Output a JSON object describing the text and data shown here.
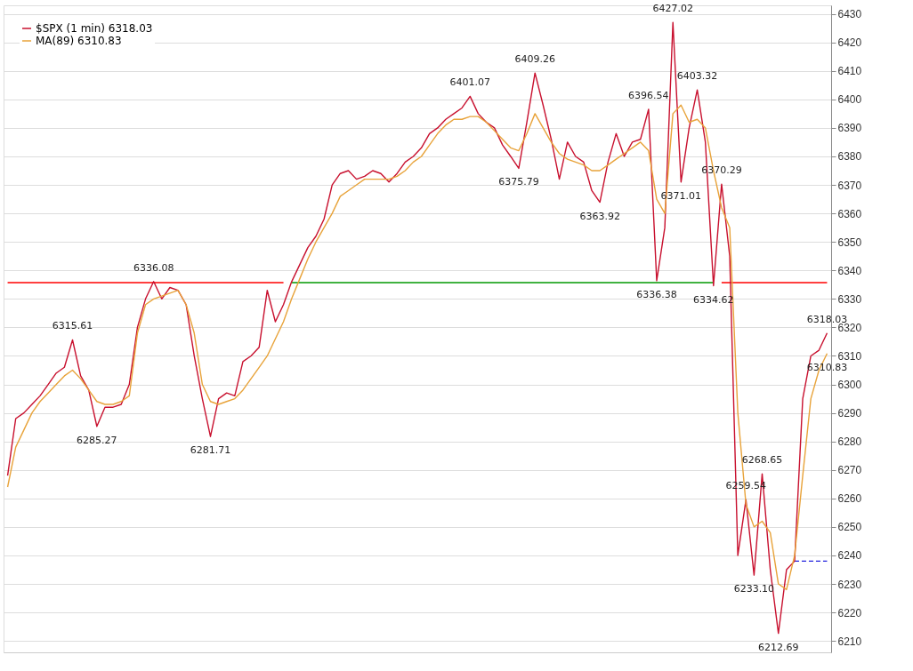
{
  "chart_data": {
    "type": "line",
    "categories": [
      null,
      null,
      null,
      null,
      null,
      null,
      null,
      null,
      null,
      null,
      null,
      null,
      null,
      null,
      null,
      null,
      null,
      null,
      null,
      null,
      null,
      null,
      null,
      null,
      null,
      null,
      null,
      null,
      null,
      null,
      null,
      null,
      null,
      null,
      null,
      null,
      null,
      null,
      null,
      null,
      null,
      null,
      null,
      null,
      null,
      null,
      null,
      null,
      null,
      null,
      null,
      null,
      null,
      null,
      null,
      null,
      null,
      null,
      null,
      null,
      null,
      null,
      null,
      null,
      null,
      null,
      null,
      null,
      null,
      null,
      null,
      null,
      null,
      null,
      null,
      null,
      null,
      null,
      null,
      null,
      null,
      null,
      null,
      null,
      null,
      null,
      null,
      null,
      null,
      null,
      null,
      null,
      null,
      null,
      null,
      null,
      null,
      null,
      null,
      null,
      null,
      null
    ],
    "ylim": [
      6206,
      6433
    ],
    "yticks": [
      6210,
      6220,
      6230,
      6240,
      6250,
      6260,
      6270,
      6280,
      6290,
      6300,
      6310,
      6320,
      6330,
      6340,
      6350,
      6360,
      6370,
      6380,
      6390,
      6400,
      6410,
      6420,
      6430
    ],
    "tick_labels": "y",
    "grid": "y",
    "legend": "top left",
    "series": [
      {
        "color": "#ff0000",
        "values": [
          6335.7,
          6335.7,
          6335.7,
          6335.7,
          6335.7,
          6335.7,
          6335.7,
          6335.7,
          6335.7,
          6335.7,
          6335.7,
          6335.7,
          6335.7,
          6335.7,
          6335.7,
          6335.7,
          6335.7,
          6335.7,
          6335.7,
          6335.7,
          6335.7,
          6335.7,
          6335.7,
          6335.7,
          6335.7,
          6335.7,
          6335.7,
          6335.7,
          6335.7,
          6335.7,
          6335.7,
          6335.7,
          6335.7,
          6335.7,
          6335.7,
          null,
          null,
          null,
          null,
          null,
          null,
          null,
          null,
          null,
          null,
          null,
          null,
          null,
          null,
          null,
          null,
          null,
          null,
          null,
          null,
          null,
          null,
          null,
          null,
          null,
          null,
          null,
          null,
          null,
          null,
          null,
          null,
          null,
          null,
          null,
          null,
          null,
          null,
          null,
          null,
          null,
          null,
          null,
          null,
          null,
          null,
          null,
          null,
          null,
          null,
          null,
          null,
          null,
          6335.7,
          6335.7,
          6335.7,
          6335.7,
          6335.7,
          6335.7,
          6335.7,
          6335.7,
          6335.7,
          6335.7,
          6335.7,
          6335.7,
          6335.7,
          6335.7
        ]
      },
      {
        "color": "#009900",
        "values": [
          null,
          null,
          null,
          null,
          null,
          null,
          null,
          null,
          null,
          null,
          null,
          null,
          null,
          null,
          null,
          null,
          null,
          null,
          null,
          null,
          null,
          null,
          null,
          null,
          null,
          null,
          null,
          null,
          null,
          null,
          null,
          null,
          null,
          null,
          null,
          6335.7,
          6335.7,
          6335.7,
          6335.7,
          6335.7,
          6335.7,
          6335.7,
          6335.7,
          6335.7,
          6335.7,
          6335.7,
          6335.7,
          6335.7,
          6335.7,
          6335.7,
          6335.7,
          6335.7,
          6335.7,
          6335.7,
          6335.7,
          6335.7,
          6335.7,
          6335.7,
          6335.7,
          6335.7,
          6335.7,
          6335.7,
          6335.7,
          6335.7,
          6335.7,
          6335.7,
          6335.7,
          6335.7,
          6335.7,
          6335.7,
          6335.7,
          6335.7,
          6335.7,
          6335.7,
          6335.7,
          6335.7,
          6335.7,
          6335.7,
          6335.7,
          6335.7,
          6335.7,
          6335.7,
          6335.7,
          6335.7,
          6335.7,
          6335.7,
          6335.7,
          6335.7,
          null,
          null,
          null,
          null,
          null,
          null,
          null,
          null,
          null,
          null,
          null,
          null,
          null,
          null
        ]
      },
      {
        "color": "#2222dd",
        "line_style": "dashed",
        "values": [
          null,
          null,
          null,
          null,
          null,
          null,
          null,
          null,
          null,
          null,
          null,
          null,
          null,
          null,
          null,
          null,
          null,
          null,
          null,
          null,
          null,
          null,
          null,
          null,
          null,
          null,
          null,
          null,
          null,
          null,
          null,
          null,
          null,
          null,
          null,
          null,
          null,
          null,
          null,
          null,
          null,
          null,
          null,
          null,
          null,
          null,
          null,
          null,
          null,
          null,
          null,
          null,
          null,
          null,
          null,
          null,
          null,
          null,
          null,
          null,
          null,
          null,
          null,
          null,
          null,
          null,
          null,
          null,
          null,
          null,
          null,
          null,
          null,
          null,
          null,
          null,
          null,
          null,
          null,
          null,
          null,
          null,
          null,
          null,
          null,
          null,
          null,
          null,
          null,
          null,
          null,
          null,
          null,
          null,
          null,
          null,
          null,
          6238,
          6238,
          6238,
          6238,
          6238
        ]
      },
      {
        "name": "$SPX (1 min) 6318.03",
        "color": "#c8102e",
        "values": [
          6268,
          6288,
          6290,
          6293,
          6296,
          6300,
          6304,
          6306,
          6315.61,
          6303,
          6298,
          6285.27,
          6292,
          6292,
          6293,
          6300,
          6320,
          6330,
          6336.08,
          6330,
          6334,
          6333,
          6328,
          6310,
          6295,
          6281.71,
          6295,
          6297,
          6296,
          6308,
          6310,
          6313,
          6333,
          6322,
          6328,
          6336,
          6342,
          6348,
          6352,
          6358,
          6370,
          6374,
          6375,
          6372,
          6373,
          6375,
          6374,
          6371,
          6374,
          6378,
          6380,
          6383,
          6388,
          6390,
          6393,
          6395,
          6397,
          6401.07,
          6395,
          6392,
          6390,
          6384,
          6380,
          6375.79,
          6392,
          6409.26,
          6398,
          6386,
          6372,
          6385,
          6380,
          6378,
          6368,
          6363.92,
          6378,
          6388,
          6380,
          6385,
          6386,
          6396.54,
          6336.38,
          6355,
          6427.02,
          6371.01,
          6390,
          6403.32,
          6385,
          6334.62,
          6370.29,
          6345,
          6240,
          6259.54,
          6233.1,
          6268.65,
          6235,
          6212.69,
          6235,
          6238,
          6295,
          6310,
          6312,
          6318.03
        ],
        "value_labels": [
          null,
          null,
          null,
          null,
          null,
          null,
          null,
          null,
          "6315.61",
          null,
          null,
          "6285.27",
          null,
          null,
          null,
          null,
          null,
          null,
          "6336.08",
          null,
          null,
          null,
          null,
          null,
          null,
          "6281.71",
          null,
          null,
          null,
          null,
          null,
          null,
          null,
          null,
          null,
          null,
          null,
          null,
          null,
          null,
          null,
          null,
          null,
          null,
          null,
          null,
          null,
          null,
          null,
          null,
          null,
          null,
          null,
          null,
          null,
          null,
          null,
          "6401.07",
          null,
          null,
          null,
          null,
          null,
          "6375.79",
          null,
          "6409.26",
          null,
          null,
          null,
          null,
          null,
          null,
          null,
          "6363.92",
          null,
          null,
          null,
          null,
          null,
          "6396.54",
          "6336.38",
          null,
          "6427.02",
          "6371.01",
          null,
          "6403.32",
          null,
          "6334.62",
          "6370.29",
          null,
          null,
          "6259.54",
          "6233.10",
          "6268.65",
          null,
          "6212.69",
          null,
          null,
          null,
          null,
          null,
          "6318.03"
        ]
      },
      {
        "name": "MA(89) 6310.83",
        "color": "#e8a33a",
        "values": [
          6264,
          6278,
          6284,
          6290,
          6294,
          6297,
          6300,
          6303,
          6305,
          6302,
          6298,
          6294,
          6293,
          6293,
          6294,
          6296,
          6318,
          6328,
          6330,
          6331,
          6332,
          6333,
          6328,
          6318,
          6300,
          6294,
          6293,
          6294,
          6295,
          6298,
          6302,
          6306,
          6310,
          6316,
          6322,
          6330,
          6337,
          6344,
          6350,
          6355,
          6360,
          6366,
          6368,
          6370,
          6372,
          6372,
          6372,
          6372,
          6373,
          6375,
          6378,
          6380,
          6384,
          6388,
          6391,
          6393,
          6393,
          6394,
          6394,
          6392,
          6389,
          6386,
          6383,
          6382,
          6388,
          6395,
          6390,
          6385,
          6381,
          6379,
          6378,
          6377,
          6375,
          6375,
          6377,
          6379,
          6381,
          6383,
          6385,
          6382,
          6365,
          6360,
          6395,
          6398,
          6392,
          6393,
          6390,
          6375,
          6362,
          6355,
          6290,
          6258,
          6250,
          6252,
          6248,
          6230,
          6228,
          6240,
          6268,
          6295,
          6305,
          6310.83
        ],
        "value_labels": [
          null,
          null,
          null,
          null,
          null,
          null,
          null,
          null,
          null,
          null,
          null,
          null,
          null,
          null,
          null,
          null,
          null,
          null,
          null,
          null,
          null,
          null,
          null,
          null,
          null,
          null,
          null,
          null,
          null,
          null,
          null,
          null,
          null,
          null,
          null,
          null,
          null,
          null,
          null,
          null,
          null,
          null,
          null,
          null,
          null,
          null,
          null,
          null,
          null,
          null,
          null,
          null,
          null,
          null,
          null,
          null,
          null,
          null,
          null,
          null,
          null,
          null,
          null,
          null,
          null,
          null,
          null,
          null,
          null,
          null,
          null,
          null,
          null,
          null,
          null,
          null,
          null,
          null,
          null,
          null,
          null,
          null,
          null,
          null,
          null,
          null,
          null,
          null,
          null,
          null,
          null,
          null,
          null,
          null,
          null,
          null,
          null,
          null,
          null,
          null,
          null,
          "6310.83"
        ]
      }
    ]
  }
}
